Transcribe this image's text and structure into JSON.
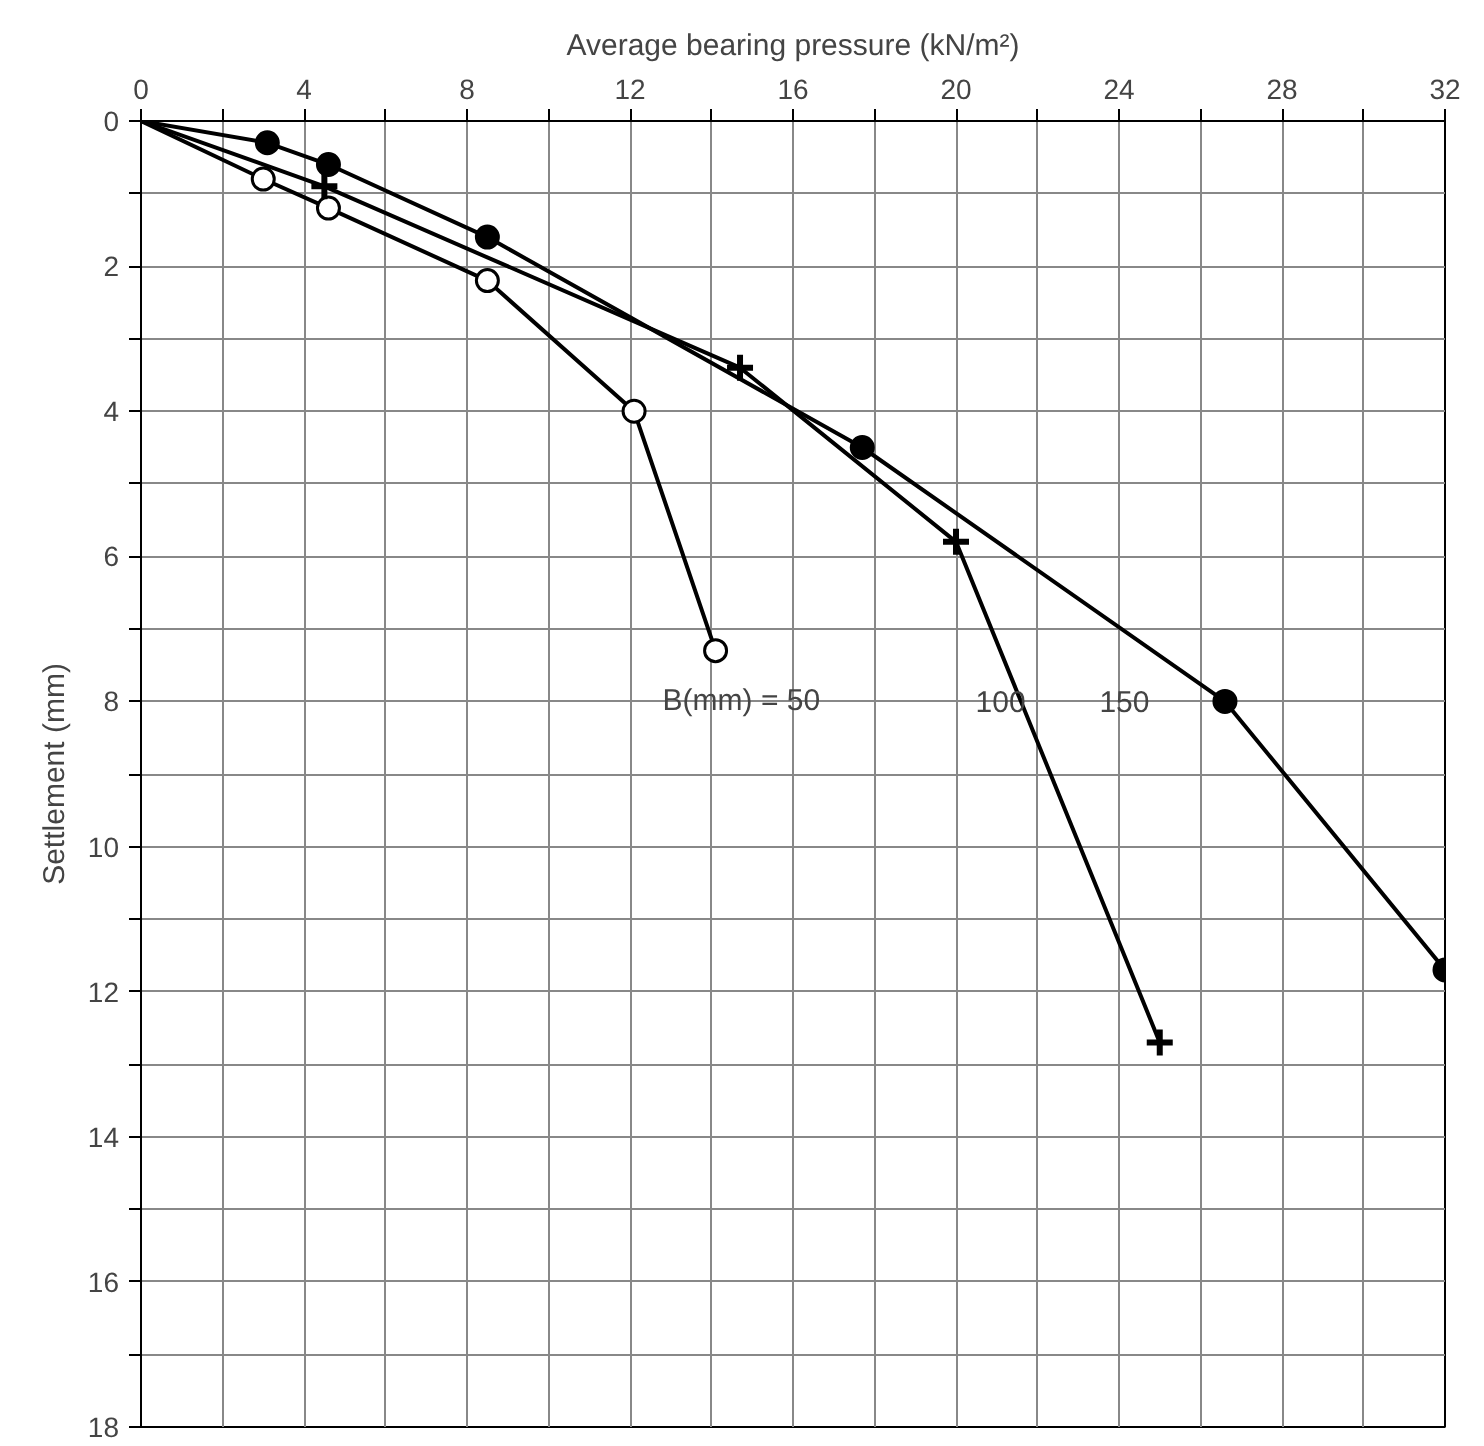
{
  "chart_data": {
    "type": "line",
    "xlabel": "Average bearing pressure (kN/m²)",
    "ylabel": "Settlement (mm)",
    "xlim": [
      0,
      32
    ],
    "ylim": [
      18,
      0
    ],
    "xticks": [
      0,
      {
        "value": 2,
        "label": null
      },
      4,
      {
        "value": 6,
        "label": null
      },
      8,
      {
        "value": 10,
        "label": null
      },
      12,
      {
        "value": 14,
        "label": null
      },
      16,
      {
        "value": 18,
        "label": null
      },
      20,
      {
        "value": 22,
        "label": null
      },
      24,
      {
        "value": 26,
        "label": null
      },
      28,
      {
        "value": 30,
        "label": null
      },
      32
    ],
    "yticks": [
      0,
      {
        "value": 1,
        "label": null
      },
      2,
      {
        "value": 3,
        "label": null
      },
      4,
      {
        "value": 5,
        "label": null
      },
      6,
      {
        "value": 7,
        "label": null
      },
      8,
      {
        "value": 9,
        "label": null
      },
      10,
      {
        "value": 11,
        "label": null
      },
      12,
      {
        "value": 13,
        "label": null
      },
      14,
      {
        "value": 15,
        "label": null
      },
      16,
      {
        "value": 17,
        "label": null
      },
      18
    ],
    "grid": true,
    "series": [
      {
        "color": "#000000",
        "marker": "circle",
        "x": [
          0,
          3,
          4.6,
          8.5,
          12.1,
          14.1
        ],
        "values": [
          0,
          0.8,
          1.2,
          2.2,
          4.0,
          7.3
        ]
      },
      {
        "color": "#000000",
        "marker": "cross",
        "x": [
          0,
          4.5,
          14.7,
          20,
          25
        ],
        "values": [
          0,
          0.9,
          3.4,
          5.8,
          12.7
        ]
      },
      {
        "color": "#000000",
        "marker": "circle",
        "x": [
          0,
          3.1,
          4.6,
          8.5,
          17.7,
          26.6,
          32
        ],
        "values": [
          0,
          0.3,
          0.6,
          1.6,
          4.5,
          8.0,
          11.7
        ]
      }
    ],
    "annotations": [
      "B(mm) = 50",
      "100",
      "150"
    ]
  }
}
